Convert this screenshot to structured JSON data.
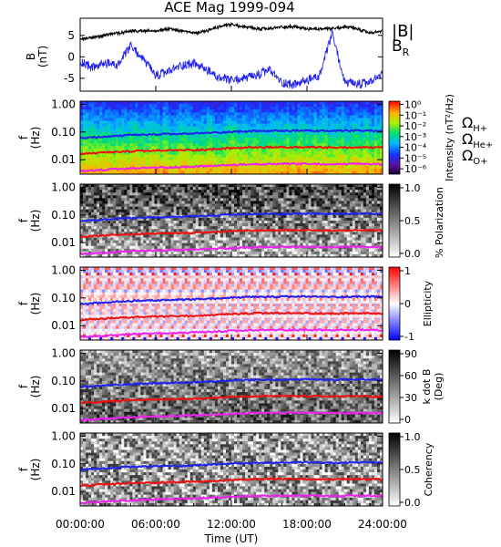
{
  "figure": {
    "title": "ACE Mag 1999-094",
    "time_axis_label": "Time (UT)",
    "time_ticks": [
      "00:00:00",
      "06:00:00",
      "12:00:00",
      "18:00:00",
      "24:00:00"
    ],
    "time_tick_hours": [
      0,
      6,
      12,
      18,
      24
    ],
    "freq_ticks": [
      "1.00",
      "0.10",
      "0.01"
    ],
    "freq_tick_values": [
      1.0,
      0.1,
      0.01
    ],
    "freq_axis_label_top": "f",
    "freq_axis_label_bottom": "(Hz)"
  },
  "legend": {
    "B_total": "|B|",
    "B_total_color": "#000000",
    "B_R": "B",
    "B_R_sub": "R",
    "B_R_color": "#2222ee",
    "omega_symbol": "Ω",
    "H_sub": "H+",
    "H_color": "#2222ee",
    "He_sub": "He+",
    "He_color": "#ee1111",
    "O_sub": "O+",
    "O_color": "#ee22ee"
  },
  "chart_data": [
    {
      "type": "line",
      "panel": "magnetic field",
      "ylabel_top": "B",
      "ylabel_bottom": "(nT)",
      "ylim": [
        -8,
        9
      ],
      "y_ticks": [
        "5",
        "0",
        "-5"
      ],
      "y_tick_values": [
        5,
        0,
        -5
      ],
      "x": [
        0,
        1,
        2,
        3,
        4,
        5,
        6,
        7,
        8,
        9,
        10,
        11,
        12,
        13,
        14,
        15,
        16,
        17,
        18,
        19,
        20,
        21,
        22,
        23,
        24
      ],
      "series": [
        {
          "key": "Btot",
          "values": [
            4.0,
            4.5,
            5.0,
            5.5,
            6.0,
            6.0,
            6.0,
            6.5,
            6.0,
            5.5,
            6.0,
            7.0,
            7.5,
            7.0,
            6.5,
            6.5,
            7.0,
            7.0,
            6.5,
            6.5,
            6.5,
            7.0,
            6.5,
            5.5,
            6.0
          ]
        },
        {
          "key": "BR",
          "values": [
            -1.0,
            -2.5,
            -1.5,
            -2.0,
            2.5,
            -0.5,
            -4.5,
            -3.5,
            -2.0,
            -1.5,
            -3.0,
            -5.0,
            -5.5,
            -5.0,
            -4.5,
            -3.0,
            -6.0,
            -6.5,
            -5.5,
            -4.5,
            5.5,
            -6.0,
            -6.5,
            -6.0,
            -4.0
          ]
        }
      ]
    },
    {
      "type": "heatmap",
      "panel": "power spectral density",
      "colorbar_label": "Intensity (nT²/Hz)",
      "colorbar_ticks": [
        "10⁰",
        "10⁻¹",
        "10⁻²",
        "10⁻³",
        "10⁻⁴",
        "10⁻⁵",
        "10⁻⁶"
      ],
      "colorbar_range_log10": [
        -6.5,
        0.3
      ]
    },
    {
      "type": "heatmap",
      "panel": "percent polarization",
      "colorbar_label": "% Polarization",
      "colorbar_ticks": [
        "1.0",
        "0.5",
        "0.0"
      ],
      "colorbar_range": [
        0,
        1
      ]
    },
    {
      "type": "heatmap",
      "panel": "ellipticity",
      "colorbar_label": "Ellipticity",
      "colorbar_ticks": [
        "1",
        "0",
        "-1"
      ],
      "colorbar_range": [
        -1,
        1
      ]
    },
    {
      "type": "heatmap",
      "panel": "wave normal angle",
      "colorbar_label": "k dot B",
      "colorbar_label_2": "(Deg)",
      "colorbar_ticks": [
        "90",
        "60",
        "30",
        "0"
      ],
      "colorbar_range": [
        0,
        90
      ]
    },
    {
      "type": "heatmap",
      "panel": "coherency",
      "colorbar_label": "Coherency",
      "colorbar_ticks": [
        "1.0",
        "0.5",
        "0.0"
      ],
      "colorbar_range": [
        0,
        1
      ]
    },
    {
      "type": "line",
      "panel": "ion gyrofrequencies (overlaid on all spectral panels)",
      "x": [
        0,
        2,
        4,
        6,
        8,
        10,
        12,
        14,
        16,
        18,
        20,
        22,
        24
      ],
      "series": [
        {
          "key": "H",
          "values": [
            0.06,
            0.068,
            0.077,
            0.082,
            0.085,
            0.092,
            0.102,
            0.108,
            0.11,
            0.112,
            0.108,
            0.112,
            0.11
          ]
        },
        {
          "key": "He",
          "values": [
            0.016,
            0.018,
            0.02,
            0.021,
            0.022,
            0.023,
            0.026,
            0.028,
            0.028,
            0.028,
            0.027,
            0.028,
            0.027
          ]
        },
        {
          "key": "O",
          "values": [
            0.0038,
            0.0043,
            0.0048,
            0.0052,
            0.0054,
            0.0058,
            0.0064,
            0.0068,
            0.007,
            0.007,
            0.0068,
            0.007,
            0.0068
          ]
        }
      ]
    }
  ]
}
